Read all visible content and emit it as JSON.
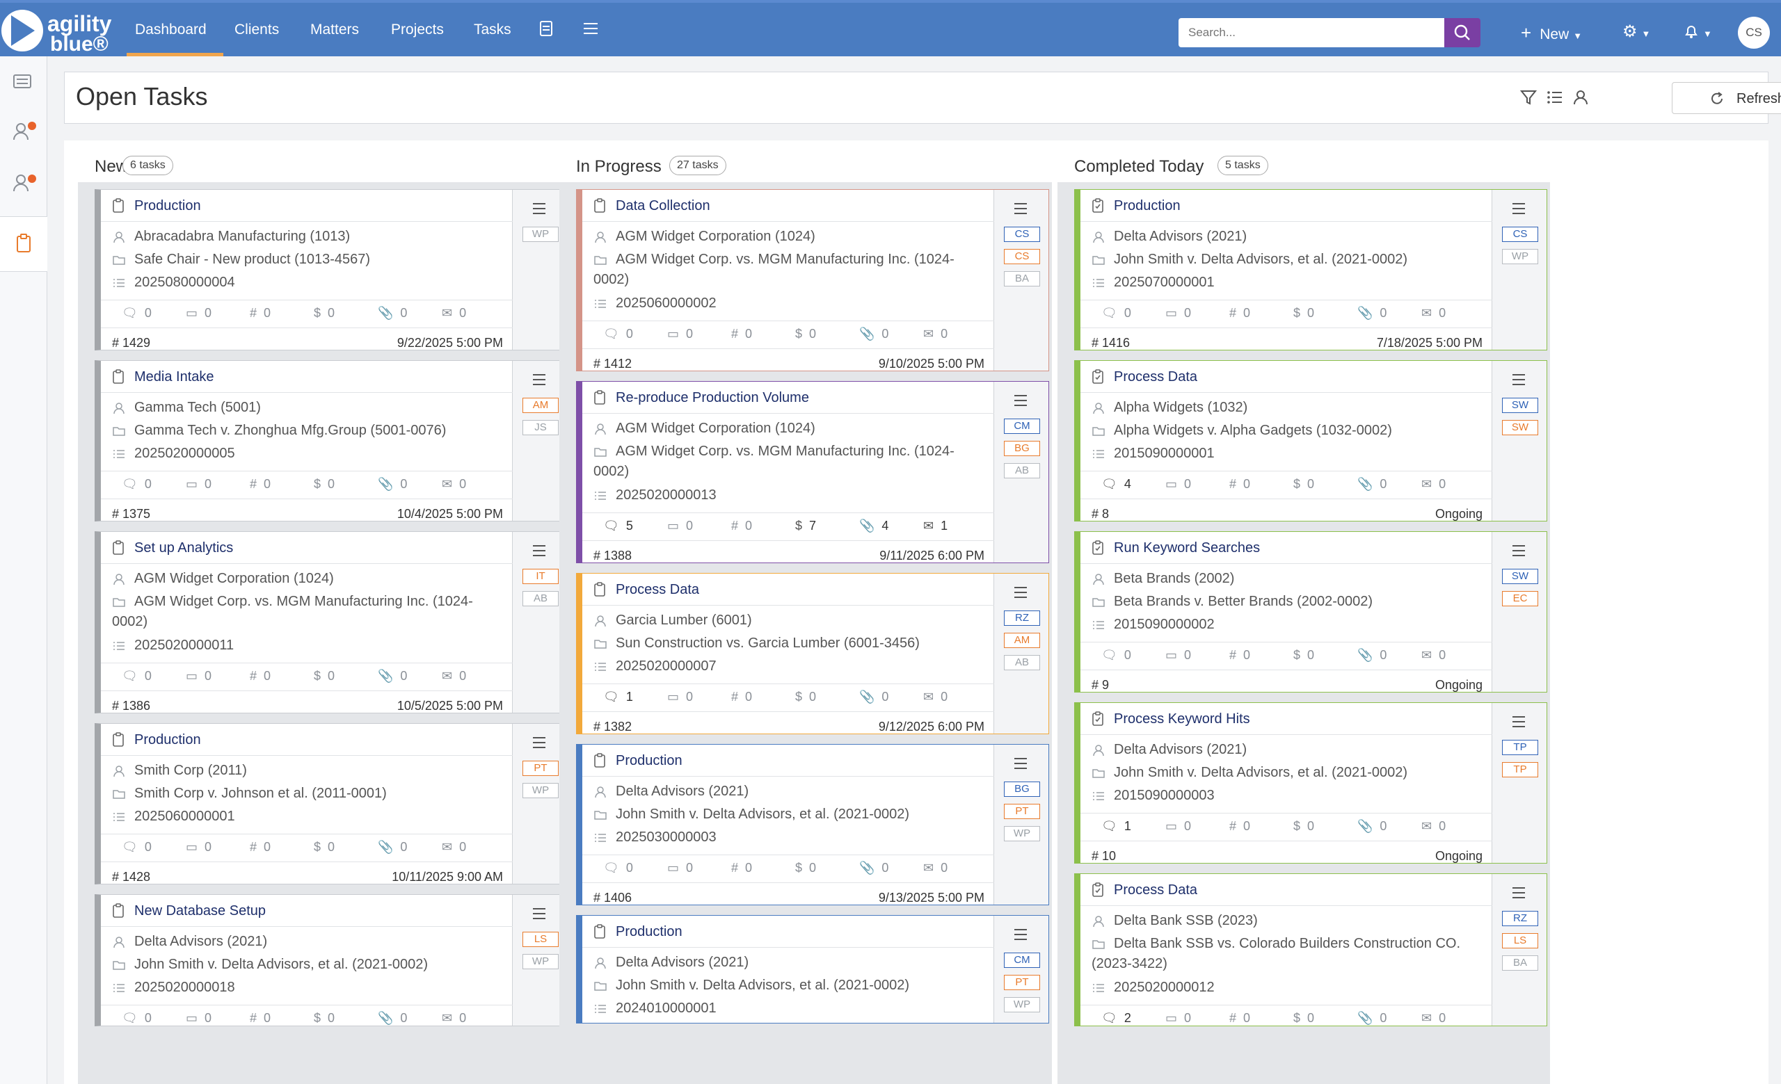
{
  "app": {
    "logo_line1": "agility",
    "logo_line2": "blue®",
    "nav": [
      "Dashboard",
      "Clients",
      "Matters",
      "Projects",
      "Tasks"
    ],
    "search_placeholder": "Search...",
    "new_label": "New",
    "avatar_initials": "CS"
  },
  "page": {
    "title": "Open Tasks",
    "refresh_label": "Refresh"
  },
  "columns": [
    {
      "title": "New",
      "count": "6 tasks",
      "cards": [
        {
          "title": "Production",
          "client": "Abracadabra Manufacturing (1013)",
          "matter": "Safe Chair - New product (1013-4567)",
          "number": "2025080000004",
          "stats": [
            "0",
            "0",
            "0",
            "0",
            "0",
            "0"
          ],
          "id": "# 1429",
          "date": "9/22/2025 5:00 PM",
          "badges": [
            [
              "WP",
              "gray"
            ]
          ],
          "color": "#a3a6aa"
        },
        {
          "title": "Media Intake",
          "client": "Gamma Tech (5001)",
          "matter": "Gamma Tech v. Zhonghua Mfg.Group (5001-0076)",
          "number": "2025020000005",
          "stats": [
            "0",
            "0",
            "0",
            "0",
            "0",
            "0"
          ],
          "id": "# 1375",
          "date": "10/4/2025 5:00 PM",
          "badges": [
            [
              "AM",
              "orange"
            ],
            [
              "JS",
              "gray"
            ]
          ],
          "color": "#a3a6aa"
        },
        {
          "title": "Set up Analytics",
          "client": "AGM Widget Corporation (1024)",
          "matter": "AGM Widget Corp. vs. MGM Manufacturing Inc. (1024-",
          "matter2": "0002)",
          "number": "2025020000011",
          "stats": [
            "0",
            "0",
            "0",
            "0",
            "0",
            "0"
          ],
          "id": "# 1386",
          "date": "10/5/2025 5:00 PM",
          "badges": [
            [
              "IT",
              "orange"
            ],
            [
              "AB",
              "gray"
            ]
          ],
          "color": "#a3a6aa"
        },
        {
          "title": "Production",
          "client": "Smith Corp (2011)",
          "matter": "Smith Corp v. Johnson et al. (2011-0001)",
          "number": "2025060000001",
          "stats": [
            "0",
            "0",
            "0",
            "0",
            "0",
            "0"
          ],
          "id": "# 1428",
          "date": "10/11/2025 9:00 AM",
          "badges": [
            [
              "PT",
              "orange"
            ],
            [
              "WP",
              "gray"
            ]
          ],
          "color": "#a3a6aa"
        },
        {
          "title": "New Database Setup",
          "client": "Delta Advisors (2021)",
          "matter": "John Smith v. Delta Advisors, et al. (2021-0002)",
          "number": "2025020000018",
          "stats": [
            "0",
            "0",
            "0",
            "0",
            "0",
            "0"
          ],
          "id": "",
          "date": "",
          "badges": [
            [
              "LS",
              "orange"
            ],
            [
              "WP",
              "gray"
            ]
          ],
          "color": "#a3a6aa"
        }
      ]
    },
    {
      "title": "In Progress",
      "count": "27 tasks",
      "cards": [
        {
          "title": "Data Collection",
          "client": "AGM Widget Corporation (1024)",
          "matter": "AGM Widget Corp. vs. MGM Manufacturing Inc. (1024-",
          "matter2": "0002)",
          "number": "2025060000002",
          "stats": [
            "0",
            "0",
            "0",
            "0",
            "0",
            "0"
          ],
          "id": "# 1412",
          "date": "9/10/2025 5:00 PM",
          "badges": [
            [
              "CS",
              "blue"
            ],
            [
              "CS",
              "orange"
            ],
            [
              "BA",
              "gray"
            ]
          ],
          "color": "#d49488"
        },
        {
          "title": "Re-produce Production Volume",
          "client": "AGM Widget Corporation (1024)",
          "matter": "AGM Widget Corp. vs. MGM Manufacturing Inc. (1024-",
          "matter2": "0002)",
          "number": "2025020000013",
          "stats": [
            "5",
            "0",
            "0",
            "7",
            "4",
            "1"
          ],
          "id": "# 1388",
          "date": "9/11/2025 6:00 PM",
          "badges": [
            [
              "CM",
              "blue"
            ],
            [
              "BG",
              "orange"
            ],
            [
              "AB",
              "gray"
            ]
          ],
          "color": "#7e4fa8"
        },
        {
          "title": "Process Data",
          "client": "Garcia Lumber (6001)",
          "matter": "Sun Construction vs. Garcia Lumber (6001-3456)",
          "number": "2025020000007",
          "stats": [
            "1",
            "0",
            "0",
            "0",
            "0",
            "0"
          ],
          "id": "# 1382",
          "date": "9/12/2025 6:00 PM",
          "badges": [
            [
              "RZ",
              "blue"
            ],
            [
              "AM",
              "orange"
            ],
            [
              "AB",
              "gray"
            ]
          ],
          "color": "#f2a93b"
        },
        {
          "title": "Production",
          "client": "Delta Advisors (2021)",
          "matter": "John Smith v. Delta Advisors, et al. (2021-0002)",
          "number": "2025030000003",
          "stats": [
            "0",
            "0",
            "0",
            "0",
            "0",
            "0"
          ],
          "id": "# 1406",
          "date": "9/13/2025 5:00 PM",
          "badges": [
            [
              "BG",
              "blue"
            ],
            [
              "PT",
              "orange"
            ],
            [
              "WP",
              "gray"
            ]
          ],
          "color": "#4a7cc1"
        },
        {
          "title": "Production",
          "client": "Delta Advisors (2021)",
          "matter": "John Smith v. Delta Advisors, et al. (2021-0002)",
          "number": "2024010000001",
          "stats": [],
          "id": "",
          "date": "",
          "badges": [
            [
              "CM",
              "blue"
            ],
            [
              "PT",
              "orange"
            ],
            [
              "WP",
              "gray"
            ]
          ],
          "color": "#4a7cc1"
        }
      ]
    },
    {
      "title": "Completed Today",
      "count": "5 tasks",
      "cards": [
        {
          "title": "Production",
          "client": "Delta Advisors (2021)",
          "matter": "John Smith v. Delta Advisors, et al. (2021-0002)",
          "number": "2025070000001",
          "stats": [
            "0",
            "0",
            "0",
            "0",
            "0",
            "0"
          ],
          "id": "# 1416",
          "date": "7/18/2025 5:00 PM",
          "badges": [
            [
              "CS",
              "blue"
            ],
            [
              "WP",
              "gray"
            ]
          ],
          "color": "#8cc04b"
        },
        {
          "title": "Process Data",
          "client": "Alpha Widgets (1032)",
          "matter": "Alpha Widgets v. Alpha Gadgets (1032-0002)",
          "number": "2015090000001",
          "stats": [
            "4",
            "0",
            "0",
            "0",
            "0",
            "0"
          ],
          "id": "# 8",
          "date": "Ongoing",
          "badges": [
            [
              "SW",
              "blue"
            ],
            [
              "SW",
              "orange"
            ]
          ],
          "color": "#8cc04b"
        },
        {
          "title": "Run Keyword Searches",
          "client": "Beta Brands (2002)",
          "matter": "Beta Brands v. Better Brands (2002-0002)",
          "number": "2015090000002",
          "stats": [
            "0",
            "0",
            "0",
            "0",
            "0",
            "0"
          ],
          "id": "# 9",
          "date": "Ongoing",
          "badges": [
            [
              "SW",
              "blue"
            ],
            [
              "EC",
              "orange"
            ]
          ],
          "color": "#8cc04b"
        },
        {
          "title": "Process Keyword Hits",
          "client": "Delta Advisors (2021)",
          "matter": "John Smith v. Delta Advisors, et al. (2021-0002)",
          "number": "2015090000003",
          "stats": [
            "1",
            "0",
            "0",
            "0",
            "0",
            "0"
          ],
          "id": "# 10",
          "date": "Ongoing",
          "badges": [
            [
              "TP",
              "blue"
            ],
            [
              "TP",
              "orange"
            ]
          ],
          "color": "#8cc04b"
        },
        {
          "title": "Process Data",
          "client": "Delta Bank SSB (2023)",
          "matter": "Delta Bank SSB vs. Colorado Builders Construction CO.",
          "matter2": "(2023-3422)",
          "number": "2025020000012",
          "stats": [
            "2",
            "0",
            "0",
            "0",
            "0",
            "0"
          ],
          "id": "",
          "date": "",
          "badges": [
            [
              "RZ",
              "blue"
            ],
            [
              "LS",
              "orange"
            ],
            [
              "BA",
              "gray"
            ]
          ],
          "color": "#8cc04b"
        }
      ]
    }
  ]
}
